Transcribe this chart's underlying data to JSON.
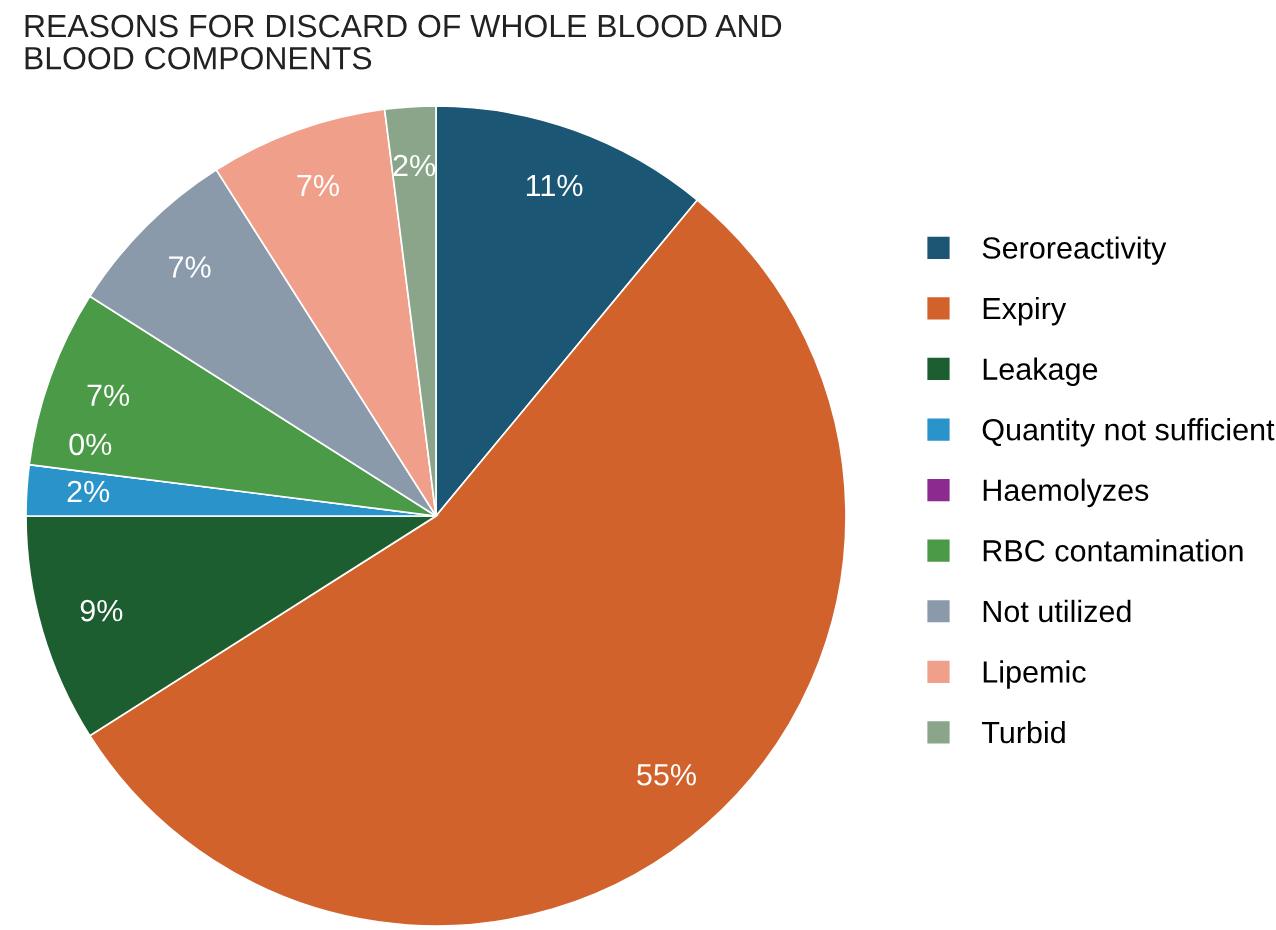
{
  "chart_data": {
    "type": "pie",
    "title": "REASONS FOR DISCARD OF WHOLE BLOOD AND\nBLOOD COMPONENTS",
    "categories": [
      "Seroreactivity",
      "Expiry",
      "Leakage",
      "Quantity not sufficient",
      "Haemolyzes",
      "RBC contamination",
      "Not utilized",
      "Lipemic",
      "Turbid"
    ],
    "values": [
      11,
      55,
      9,
      2,
      0,
      7,
      7,
      7,
      2
    ],
    "colors": [
      "#1b5675",
      "#d1622b",
      "#1c5e30",
      "#2a93c9",
      "#8b2a8f",
      "#4a9a48",
      "#8a9aab",
      "#f0a08a",
      "#8aa58a"
    ],
    "value_labels": [
      "11%",
      "55%",
      "9%",
      "2%",
      "0%",
      "7%",
      "7%",
      "7%",
      "2%"
    ],
    "legend": "right"
  }
}
